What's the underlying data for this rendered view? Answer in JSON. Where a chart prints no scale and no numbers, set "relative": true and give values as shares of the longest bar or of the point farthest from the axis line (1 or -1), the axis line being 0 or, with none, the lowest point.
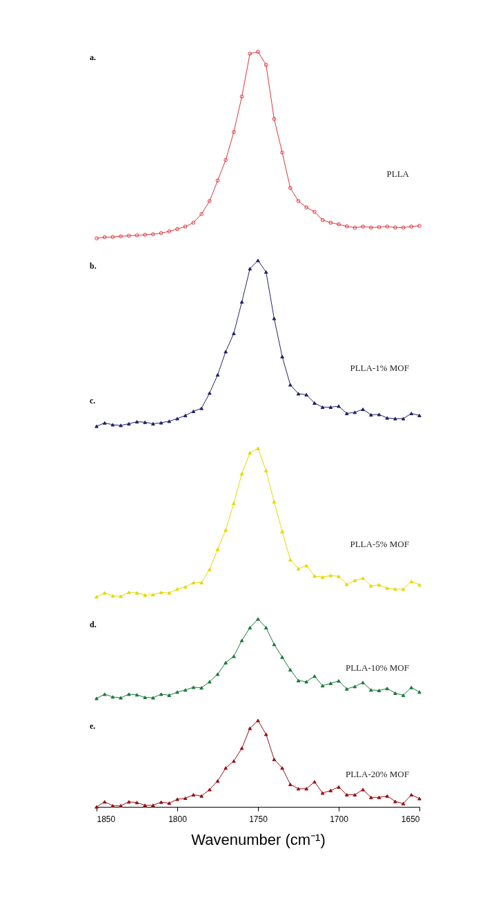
{
  "chart_data": [
    {
      "type": "line",
      "relative": true,
      "marker": "circle",
      "xlim": [
        1850,
        1650
      ],
      "tick_labels": false,
      "annotations": [
        "a."
      ],
      "x": [
        1850,
        1845,
        1840,
        1835,
        1830,
        1825,
        1820,
        1815,
        1810,
        1805,
        1800,
        1795,
        1790,
        1785,
        1780,
        1775,
        1770,
        1765,
        1760,
        1755,
        1750,
        1745,
        1740,
        1735,
        1730,
        1725,
        1720,
        1715,
        1710,
        1705,
        1700,
        1695,
        1690,
        1685,
        1680,
        1675,
        1670,
        1665,
        1660,
        1655,
        1650
      ],
      "series": [
        {
          "name": "PLLA",
          "color": "#e0343c",
          "values": [
            0,
            0.006,
            0.007,
            0.011,
            0.014,
            0.016,
            0.019,
            0.022,
            0.028,
            0.037,
            0.05,
            0.063,
            0.084,
            0.13,
            0.2,
            0.31,
            0.42,
            0.57,
            0.76,
            0.99,
            1,
            0.93,
            0.64,
            0.46,
            0.27,
            0.2,
            0.166,
            0.142,
            0.098,
            0.084,
            0.075,
            0.064,
            0.057,
            0.063,
            0.058,
            0.06,
            0.063,
            0.058,
            0.058,
            0.063,
            0.067
          ]
        }
      ]
    },
    {
      "type": "line",
      "relative": true,
      "marker": "triangle",
      "xlim": [
        1850,
        1650
      ],
      "tick_labels": false,
      "annotations": [
        "b.",
        "c."
      ],
      "x": [
        1850,
        1845,
        1840,
        1835,
        1830,
        1825,
        1820,
        1815,
        1810,
        1805,
        1800,
        1795,
        1790,
        1785,
        1780,
        1775,
        1770,
        1765,
        1760,
        1755,
        1750,
        1745,
        1740,
        1735,
        1730,
        1725,
        1720,
        1715,
        1710,
        1705,
        1700,
        1695,
        1690,
        1685,
        1680,
        1675,
        1670,
        1665,
        1660,
        1655,
        1650
      ],
      "series": [
        {
          "name": "PLLA-1% MOF",
          "color": "#22226a",
          "values": [
            0,
            0.02,
            0.009,
            0.005,
            0.015,
            0.027,
            0.024,
            0.015,
            0.021,
            0.03,
            0.046,
            0.065,
            0.09,
            0.108,
            0.2,
            0.31,
            0.45,
            0.56,
            0.75,
            0.95,
            1,
            0.93,
            0.65,
            0.42,
            0.25,
            0.196,
            0.19,
            0.14,
            0.115,
            0.115,
            0.121,
            0.077,
            0.084,
            0.102,
            0.069,
            0.071,
            0.05,
            0.046,
            0.046,
            0.077,
            0.065
          ]
        }
      ]
    },
    {
      "type": "line",
      "relative": true,
      "marker": "triangle",
      "xlim": [
        1850,
        1650
      ],
      "tick_labels": false,
      "x": [
        1850,
        1845,
        1840,
        1835,
        1830,
        1825,
        1820,
        1815,
        1810,
        1805,
        1800,
        1795,
        1790,
        1785,
        1780,
        1775,
        1770,
        1765,
        1760,
        1755,
        1750,
        1745,
        1740,
        1735,
        1730,
        1725,
        1720,
        1715,
        1710,
        1705,
        1700,
        1695,
        1690,
        1685,
        1680,
        1675,
        1670,
        1665,
        1660,
        1655,
        1650
      ],
      "series": [
        {
          "name": "PLLA-5% MOF",
          "color": "#e8d800",
          "values": [
            0,
            0.027,
            0.007,
            0.004,
            0.03,
            0.027,
            0.012,
            0.015,
            0.03,
            0.027,
            0.052,
            0.067,
            0.096,
            0.096,
            0.185,
            0.32,
            0.45,
            0.63,
            0.83,
            0.97,
            1,
            0.85,
            0.64,
            0.44,
            0.25,
            0.19,
            0.21,
            0.14,
            0.133,
            0.144,
            0.138,
            0.084,
            0.111,
            0.126,
            0.074,
            0.081,
            0.059,
            0.052,
            0.052,
            0.104,
            0.081
          ]
        }
      ]
    },
    {
      "type": "line",
      "relative": true,
      "marker": "triangle",
      "xlim": [
        1850,
        1650
      ],
      "tick_labels": false,
      "annotations": [
        "d."
      ],
      "x": [
        1850,
        1845,
        1840,
        1835,
        1830,
        1825,
        1820,
        1815,
        1810,
        1805,
        1800,
        1795,
        1790,
        1785,
        1780,
        1775,
        1770,
        1765,
        1760,
        1755,
        1750,
        1745,
        1740,
        1735,
        1730,
        1725,
        1720,
        1715,
        1710,
        1705,
        1700,
        1695,
        1690,
        1685,
        1680,
        1675,
        1670,
        1665,
        1660,
        1655,
        1650
      ],
      "series": [
        {
          "name": "PLLA-10% MOF",
          "color": "#1a7a3a",
          "values": [
            0,
            0.053,
            0.019,
            0.008,
            0.053,
            0.045,
            0.013,
            0.008,
            0.053,
            0.04,
            0.08,
            0.106,
            0.14,
            0.133,
            0.21,
            0.305,
            0.45,
            0.53,
            0.73,
            0.89,
            1,
            0.89,
            0.68,
            0.52,
            0.36,
            0.225,
            0.21,
            0.28,
            0.16,
            0.19,
            0.22,
            0.12,
            0.15,
            0.2,
            0.106,
            0.1,
            0.125,
            0.066,
            0.04,
            0.138,
            0.08
          ]
        }
      ]
    },
    {
      "type": "line",
      "relative": true,
      "marker": "triangle",
      "xlim": [
        1850,
        1650
      ],
      "xticks": [
        1850,
        1800,
        1750,
        1700,
        1650
      ],
      "tick_labels": "x",
      "xlabel": "Wavenumber (cm⁻¹)",
      "annotations": [
        "e."
      ],
      "x": [
        1850,
        1845,
        1840,
        1835,
        1830,
        1825,
        1820,
        1815,
        1810,
        1805,
        1800,
        1795,
        1790,
        1785,
        1780,
        1775,
        1770,
        1765,
        1760,
        1755,
        1750,
        1745,
        1740,
        1735,
        1730,
        1725,
        1720,
        1715,
        1710,
        1705,
        1700,
        1695,
        1690,
        1685,
        1680,
        1675,
        1670,
        1665,
        1660,
        1655,
        1650
      ],
      "series": [
        {
          "name": "PLLA-20% MOF",
          "color": "#9b1015",
          "values": [
            0,
            0.058,
            0.013,
            0.013,
            0.058,
            0.05,
            0.018,
            0.018,
            0.055,
            0.043,
            0.088,
            0.1,
            0.14,
            0.126,
            0.2,
            0.3,
            0.45,
            0.53,
            0.68,
            0.91,
            1,
            0.84,
            0.55,
            0.45,
            0.26,
            0.21,
            0.21,
            0.29,
            0.16,
            0.19,
            0.23,
            0.14,
            0.14,
            0.2,
            0.11,
            0.11,
            0.126,
            0.063,
            0.038,
            0.14,
            0.096
          ]
        }
      ]
    }
  ]
}
